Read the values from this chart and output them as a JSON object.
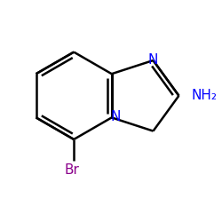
{
  "background": "#ffffff",
  "bond_color": "#000000",
  "bond_width": 1.8,
  "figsize": [
    2.5,
    2.5
  ],
  "dpi": 100,
  "N_color": "#0000ff",
  "Br_color": "#8B008B",
  "font_size": 11,
  "xlim": [
    -2.5,
    2.2
  ],
  "ylim": [
    -2.2,
    1.8
  ],
  "shift": [
    0.0,
    0.15
  ]
}
